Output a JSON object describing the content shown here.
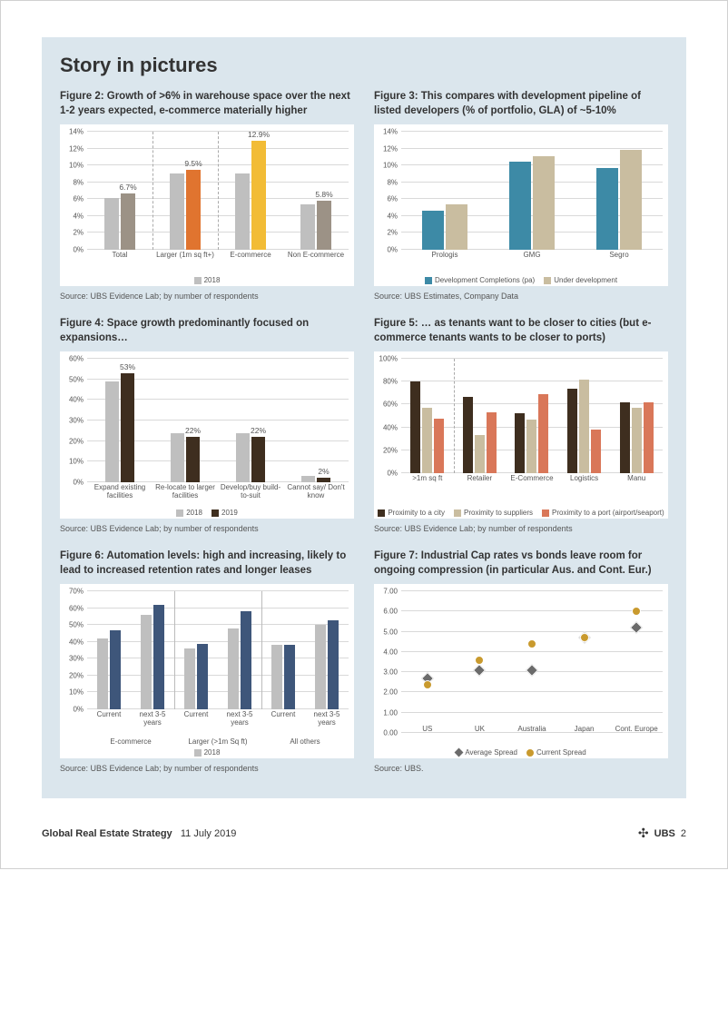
{
  "section_title": "Story in pictures",
  "footer": {
    "title": "Global Real Estate Strategy",
    "date": "11 July 2019",
    "brand": "UBS",
    "page_num": "2"
  },
  "colors": {
    "panel_bg": "#dbe6ed",
    "grid": "#d9d9d9",
    "gray_light": "#bfbfbf",
    "gray_med": "#9c9286",
    "orange": "#e0742f",
    "yellow": "#f2bc36",
    "teal": "#3d8aa6",
    "tan": "#c9bda0",
    "brown_dark": "#3e2e1f",
    "brown_med": "#604733",
    "salmon": "#d97759",
    "navy": "#3e567a",
    "gold": "#c99a2e"
  },
  "fig2": {
    "title": "Figure 2: Growth of >6% in warehouse space over the next 1-2 years expected, e-commerce materially higher",
    "source": "Source:  UBS Evidence Lab; by number of respondents",
    "ymax": 14,
    "ytick": 2,
    "ysuffix": "%",
    "categories": [
      "Total",
      "Larger (1m sq ft+)",
      "E-commerce",
      "Non E-commerce"
    ],
    "series_labels": [
      "2018"
    ],
    "bars": [
      {
        "vals": [
          6.1,
          6.7
        ],
        "colors": [
          "#bfbfbf",
          "#9c9286"
        ],
        "topLabel": "6.7%",
        "labelIdx": 1
      },
      {
        "vals": [
          9.0,
          9.5
        ],
        "colors": [
          "#bfbfbf",
          "#e0742f"
        ],
        "topLabel": "9.5%",
        "labelIdx": 1
      },
      {
        "vals": [
          9.0,
          12.9
        ],
        "colors": [
          "#bfbfbf",
          "#f2bc36"
        ],
        "topLabel": "12.9%",
        "labelIdx": 1
      },
      {
        "vals": [
          5.4,
          5.8
        ],
        "colors": [
          "#bfbfbf",
          "#9c9286"
        ],
        "topLabel": "5.8%",
        "labelIdx": 1
      }
    ],
    "dividers": [
      1,
      2
    ]
  },
  "fig3": {
    "title": "Figure 3: This compares with development pipeline of listed developers (% of portfolio, GLA) of ~5-10%",
    "source": "Source:  UBS Estimates, Company Data",
    "ymax": 14,
    "ytick": 2,
    "ysuffix": "%",
    "categories": [
      "Prologis",
      "GMG",
      "Segro"
    ],
    "legend": [
      {
        "label": "Development Completions (pa)",
        "color": "#3d8aa6"
      },
      {
        "label": "Under development",
        "color": "#c9bda0"
      }
    ],
    "bars": [
      {
        "vals": [
          4.6,
          5.4
        ],
        "colors": [
          "#3d8aa6",
          "#c9bda0"
        ]
      },
      {
        "vals": [
          10.4,
          11.1
        ],
        "colors": [
          "#3d8aa6",
          "#c9bda0"
        ]
      },
      {
        "vals": [
          9.7,
          11.8
        ],
        "colors": [
          "#3d8aa6",
          "#c9bda0"
        ]
      }
    ]
  },
  "fig4": {
    "title": "Figure 4: Space growth predominantly focused on expansions…",
    "source": "Source:  UBS Evidence Lab; by number of respondents",
    "ymax": 60,
    "ytick": 10,
    "ysuffix": "%",
    "categories": [
      "Expand existing facilities",
      "Re-locate to larger facilities",
      "Develop/buy build-to-suit",
      "Cannot say/ Don't know"
    ],
    "legend": [
      {
        "label": "2018",
        "color": "#bfbfbf"
      },
      {
        "label": "2019",
        "color": "#3e2e1f"
      }
    ],
    "bars": [
      {
        "vals": [
          49,
          53
        ],
        "colors": [
          "#bfbfbf",
          "#3e2e1f"
        ],
        "topLabel": "53%",
        "labelIdx": 1
      },
      {
        "vals": [
          24,
          22
        ],
        "colors": [
          "#bfbfbf",
          "#3e2e1f"
        ],
        "topLabel": "22%",
        "labelIdx": 1
      },
      {
        "vals": [
          24,
          22
        ],
        "colors": [
          "#bfbfbf",
          "#3e2e1f"
        ],
        "topLabel": "22%",
        "labelIdx": 1
      },
      {
        "vals": [
          3,
          2
        ],
        "colors": [
          "#bfbfbf",
          "#3e2e1f"
        ],
        "topLabel": "2%",
        "labelIdx": 1
      }
    ]
  },
  "fig5": {
    "title": "Figure 5: … as tenants want to be closer to cities (but e-commerce tenants wants to be closer to ports)",
    "source": "Source:  UBS Evidence Lab; by number of respondents",
    "ymax": 100,
    "ytick": 20,
    "ysuffix": "%",
    "categories": [
      ">1m sq ft",
      "Retailer",
      "E-Commerce",
      "Logistics",
      "Manu"
    ],
    "legend": [
      {
        "label": "Proximity to a city",
        "color": "#3e2e1f"
      },
      {
        "label": "Proximity to suppliers",
        "color": "#c9bda0"
      },
      {
        "label": "Proximity to a port (airport/seaport)",
        "color": "#d97759"
      }
    ],
    "bars": [
      {
        "vals": [
          80,
          57,
          48
        ],
        "colors": [
          "#3e2e1f",
          "#c9bda0",
          "#d97759"
        ]
      },
      {
        "vals": [
          67,
          33,
          53
        ],
        "colors": [
          "#3e2e1f",
          "#c9bda0",
          "#d97759"
        ]
      },
      {
        "vals": [
          52,
          47,
          69
        ],
        "colors": [
          "#3e2e1f",
          "#c9bda0",
          "#d97759"
        ]
      },
      {
        "vals": [
          74,
          82,
          38
        ],
        "colors": [
          "#3e2e1f",
          "#c9bda0",
          "#d97759"
        ]
      },
      {
        "vals": [
          62,
          57,
          62
        ],
        "colors": [
          "#3e2e1f",
          "#c9bda0",
          "#d97759"
        ]
      }
    ],
    "dividers": [
      1
    ]
  },
  "fig6": {
    "title": "Figure 6: Automation levels: high and increasing, likely to lead to increased retention rates and longer leases",
    "source": "Source:  UBS Evidence Lab; by number of respondents",
    "ymax": 70,
    "ytick": 10,
    "ysuffix": "%",
    "categories": [
      "Current",
      "next 3-5 years",
      "Current",
      "next 3-5 years",
      "Current",
      "next 3-5 years"
    ],
    "group_labels": [
      "E-commerce",
      "Larger (>1m Sq ft)",
      "All others"
    ],
    "legend": [
      {
        "label": "2018",
        "color": "#bfbfbf"
      }
    ],
    "bars": [
      {
        "vals": [
          42,
          47
        ],
        "colors": [
          "#bfbfbf",
          "#3e567a"
        ]
      },
      {
        "vals": [
          56,
          62
        ],
        "colors": [
          "#bfbfbf",
          "#3e567a"
        ]
      },
      {
        "vals": [
          36,
          39
        ],
        "colors": [
          "#bfbfbf",
          "#3e567a"
        ]
      },
      {
        "vals": [
          48,
          58
        ],
        "colors": [
          "#bfbfbf",
          "#3e567a"
        ]
      },
      {
        "vals": [
          38,
          38
        ],
        "colors": [
          "#bfbfbf",
          "#3e567a"
        ]
      },
      {
        "vals": [
          50,
          53
        ],
        "colors": [
          "#bfbfbf",
          "#3e567a"
        ]
      }
    ],
    "group_dividers": [
      2,
      4
    ]
  },
  "fig7": {
    "title": "Figure 7: Industrial Cap rates vs bonds leave room for ongoing compression (in particular Aus. and Cont. Eur.)",
    "source": "Source:  UBS.",
    "ymax": 7,
    "ytick": 1,
    "yformat": "0.00",
    "categories": [
      "US",
      "UK",
      "Australia",
      "Japan",
      "Cont. Europe"
    ],
    "legend": [
      {
        "label": "Average Spread",
        "shape": "diamond",
        "color": "#6b6b6b"
      },
      {
        "label": "Current Spread",
        "shape": "circle",
        "color": "#c99a2e"
      }
    ],
    "points": [
      {
        "avg": 2.7,
        "cur": 2.4
      },
      {
        "avg": 3.1,
        "cur": 3.6
      },
      {
        "avg": 3.1,
        "cur": 4.4
      },
      {
        "avg": 4.7,
        "cur": 4.7
      },
      {
        "avg": 5.2,
        "cur": 6.0
      }
    ]
  }
}
